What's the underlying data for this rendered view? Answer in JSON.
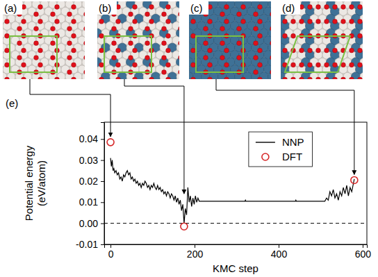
{
  "chart_data": {
    "type": "line",
    "panel_labels": [
      "(a)",
      "(b)",
      "(c)",
      "(d)",
      "(e)"
    ],
    "x_label": "KMC step",
    "y_label": [
      "Potential energy",
      "(eV/atom)"
    ],
    "xlim": [
      -15,
      610
    ],
    "xticks": [
      0,
      200,
      400,
      600
    ],
    "ylim": [
      -0.01,
      0.048
    ],
    "yticks": [
      -0.01,
      {
        "value": 0,
        "label": "0.00"
      },
      0.01,
      0.02,
      0.03,
      0.04
    ],
    "hline": 0,
    "legend": "upper right",
    "series": [
      {
        "name": "NNP",
        "type": "line",
        "color": "#000000",
        "line_style": "solid",
        "x": [
          0,
          2,
          4,
          6,
          8,
          10,
          13,
          16,
          19,
          22,
          25,
          28,
          31,
          34,
          37,
          40,
          43,
          46,
          49,
          52,
          55,
          58,
          61,
          64,
          67,
          70,
          73,
          76,
          79,
          82,
          85,
          88,
          91,
          94,
          97,
          100,
          103,
          106,
          109,
          112,
          115,
          118,
          121,
          124,
          127,
          130,
          133,
          136,
          139,
          142,
          145,
          148,
          151,
          154,
          157,
          160,
          163,
          166,
          169,
          172,
          175,
          178,
          181,
          184,
          187,
          190,
          193,
          196,
          199,
          202,
          205,
          208,
          211,
          320,
          321,
          322,
          440,
          441,
          442,
          510,
          514,
          518,
          522,
          526,
          530,
          534,
          538,
          542,
          546,
          550,
          554,
          558,
          562,
          566,
          570,
          574,
          578,
          580
        ],
        "values": [
          0.031,
          0.027,
          0.03,
          0.025,
          0.026,
          0.024,
          0.025,
          0.023,
          0.024,
          0.021,
          0.022,
          0.02,
          0.023,
          0.022,
          0.024,
          0.025,
          0.023,
          0.024,
          0.021,
          0.022,
          0.02,
          0.021,
          0.019,
          0.02,
          0.018,
          0.019,
          0.017,
          0.019,
          0.018,
          0.02,
          0.019,
          0.017,
          0.018,
          0.016,
          0.018,
          0.017,
          0.019,
          0.017,
          0.016,
          0.018,
          0.016,
          0.017,
          0.015,
          0.016,
          0.014,
          0.015,
          0.013,
          0.015,
          0.014,
          0.012,
          0.014,
          0.013,
          0.011,
          0.013,
          0.01,
          0.012,
          0.009,
          0.011,
          0.006,
          0.009,
          0.0,
          0.007,
          0.004,
          0.017,
          0.01,
          0.013,
          0.008,
          0.012,
          0.009,
          0.013,
          0.01,
          0.012,
          0.0105,
          0.0105,
          0.011,
          0.0105,
          0.0105,
          0.011,
          0.0105,
          0.0105,
          0.012,
          0.011,
          0.015,
          0.013,
          0.016,
          0.012,
          0.014,
          0.011,
          0.015,
          0.013,
          0.017,
          0.014,
          0.018,
          0.013,
          0.017,
          0.015,
          0.019,
          0.021
        ]
      },
      {
        "name": "DFT",
        "type": "scatter",
        "color": "#d62728",
        "marker": "open-circle",
        "x": [
          0,
          175,
          580
        ],
        "values": [
          0.0385,
          -0.0015,
          0.0205
        ]
      }
    ]
  }
}
